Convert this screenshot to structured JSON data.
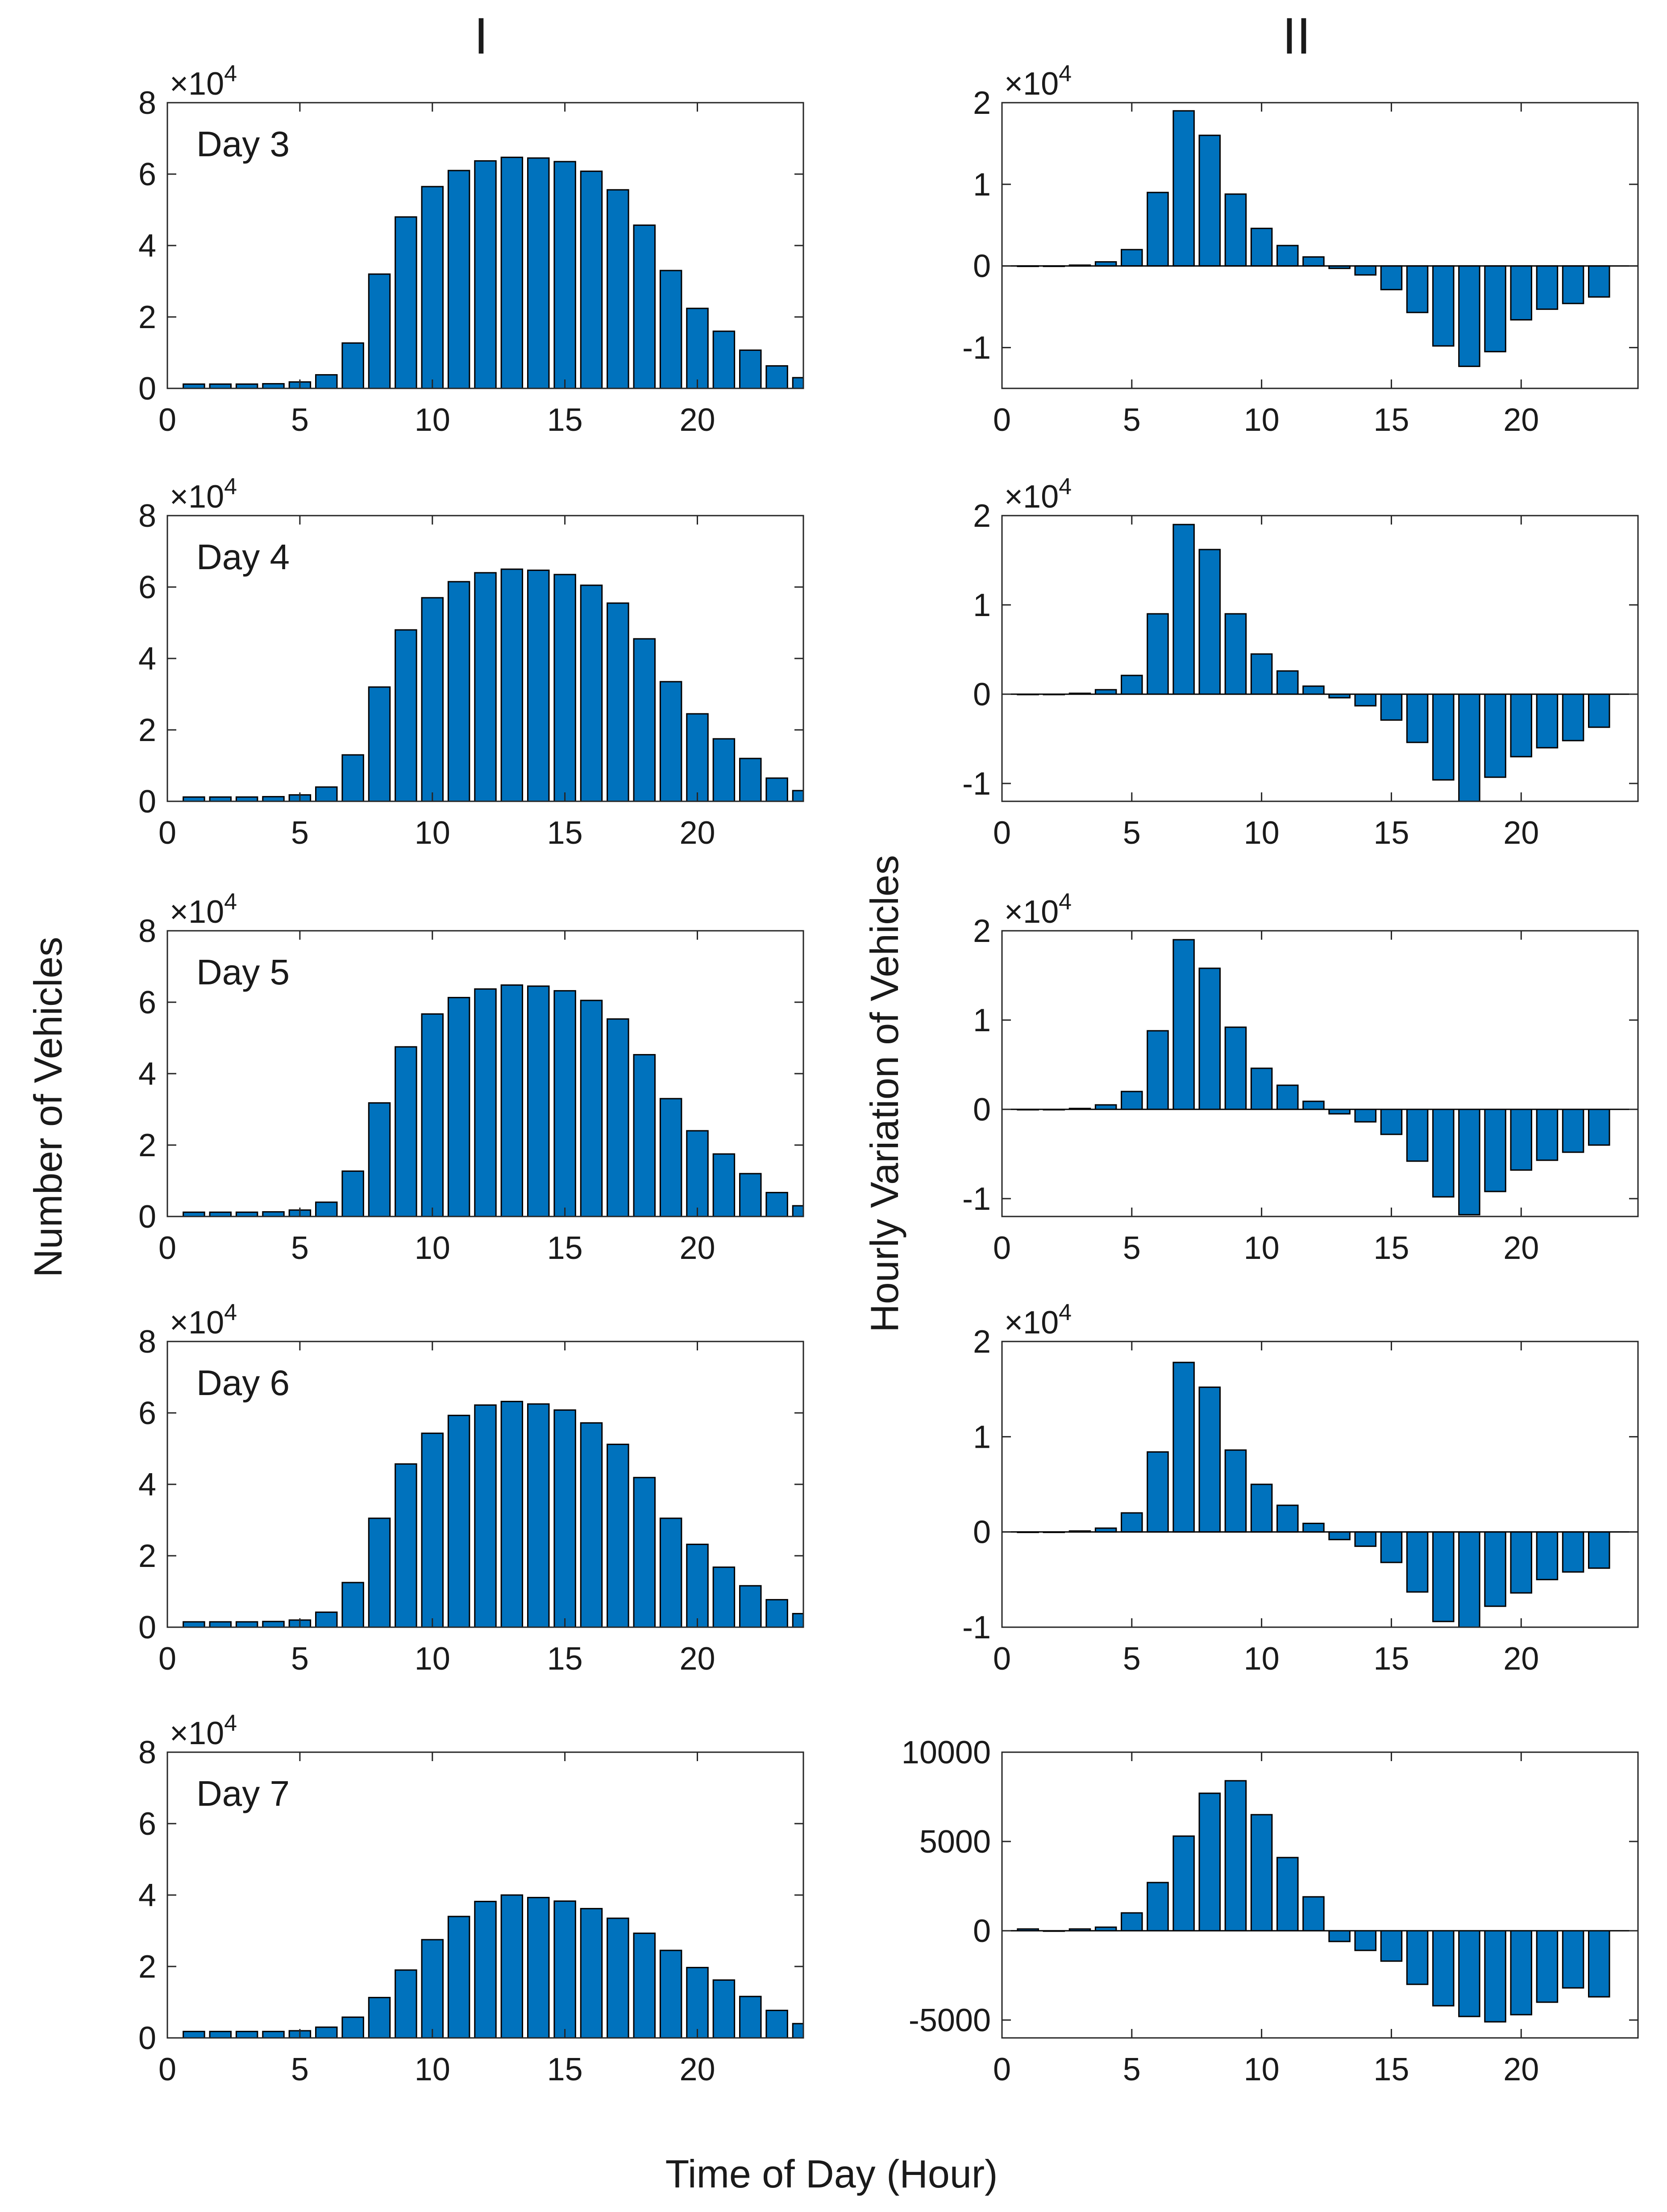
{
  "figure": {
    "column_titles": [
      "I",
      "II"
    ],
    "left_ylabel": "Number of Vehicles",
    "right_ylabel": "Hourly Variation of Vehicles",
    "xlabel": "Time of Day (Hour)",
    "bar_color": "#0072BD",
    "edge_color": "#000000"
  },
  "chart_data": [
    {
      "id": "I-day3",
      "type": "bar",
      "annotation": "Day 3",
      "exponent_label": "×10",
      "exponent": "4",
      "ylim": [
        0,
        80000
      ],
      "yticks": [
        0,
        20000,
        40000,
        60000,
        80000
      ],
      "ytick_labels": [
        "0",
        "2",
        "4",
        "6",
        "8"
      ],
      "xlim": [
        0,
        24
      ],
      "xticks": [
        0,
        5,
        10,
        15,
        20
      ],
      "xtick_labels": [
        "0",
        "5",
        "10",
        "15",
        "20"
      ],
      "x": [
        1,
        2,
        3,
        4,
        5,
        6,
        7,
        8,
        9,
        10,
        11,
        12,
        13,
        14,
        15,
        16,
        17,
        18,
        19,
        20,
        21,
        22,
        23,
        24
      ],
      "values": [
        1200,
        1200,
        1200,
        1300,
        1800,
        3800,
        12700,
        32000,
        48000,
        56500,
        61000,
        63700,
        64700,
        64500,
        63500,
        60800,
        55600,
        45700,
        33000,
        22400,
        16000,
        10700,
        6300,
        3000
      ]
    },
    {
      "id": "II-day3",
      "type": "bar",
      "exponent_label": "×10",
      "exponent": "4",
      "ylim": [
        -15000,
        20000
      ],
      "yticks": [
        -10000,
        0,
        10000,
        20000
      ],
      "ytick_labels": [
        "-1",
        "0",
        "1",
        "2"
      ],
      "xlim": [
        0,
        24.5
      ],
      "xticks": [
        0,
        5,
        10,
        15,
        20
      ],
      "xtick_labels": [
        "0",
        "5",
        "10",
        "15",
        "20"
      ],
      "x": [
        1,
        2,
        3,
        4,
        5,
        6,
        7,
        8,
        9,
        10,
        11,
        12,
        13,
        14,
        15,
        16,
        17,
        18,
        19,
        20,
        21,
        22,
        23
      ],
      "values": [
        0,
        0,
        100,
        500,
        2000,
        9000,
        19000,
        16000,
        8800,
        4600,
        2500,
        1100,
        -300,
        -1100,
        -2900,
        -5700,
        -9800,
        -12300,
        -10500,
        -6600,
        -5300,
        -4600,
        -3800
      ]
    },
    {
      "id": "I-day4",
      "type": "bar",
      "annotation": "Day 4",
      "exponent_label": "×10",
      "exponent": "4",
      "ylim": [
        0,
        80000
      ],
      "yticks": [
        0,
        20000,
        40000,
        60000,
        80000
      ],
      "ytick_labels": [
        "0",
        "2",
        "4",
        "6",
        "8"
      ],
      "xlim": [
        0,
        24
      ],
      "xticks": [
        0,
        5,
        10,
        15,
        20
      ],
      "xtick_labels": [
        "0",
        "5",
        "10",
        "15",
        "20"
      ],
      "x": [
        1,
        2,
        3,
        4,
        5,
        6,
        7,
        8,
        9,
        10,
        11,
        12,
        13,
        14,
        15,
        16,
        17,
        18,
        19,
        20,
        21,
        22,
        23,
        24
      ],
      "values": [
        1200,
        1200,
        1200,
        1300,
        1800,
        4000,
        13000,
        32000,
        48000,
        57000,
        61500,
        64000,
        65000,
        64700,
        63500,
        60500,
        55500,
        45500,
        33500,
        24500,
        17500,
        12000,
        6500,
        3000
      ]
    },
    {
      "id": "II-day4",
      "type": "bar",
      "exponent_label": "×10",
      "exponent": "4",
      "ylim": [
        -12000,
        20000
      ],
      "yticks": [
        -10000,
        0,
        10000,
        20000
      ],
      "ytick_labels": [
        "-1",
        "0",
        "1",
        "2"
      ],
      "xlim": [
        0,
        24.5
      ],
      "xticks": [
        0,
        5,
        10,
        15,
        20
      ],
      "xtick_labels": [
        "0",
        "5",
        "10",
        "15",
        "20"
      ],
      "x": [
        1,
        2,
        3,
        4,
        5,
        6,
        7,
        8,
        9,
        10,
        11,
        12,
        13,
        14,
        15,
        16,
        17,
        18,
        19,
        20,
        21,
        22,
        23
      ],
      "values": [
        0,
        0,
        100,
        500,
        2100,
        9000,
        19000,
        16200,
        9000,
        4500,
        2600,
        900,
        -400,
        -1300,
        -2900,
        -5400,
        -9600,
        -12000,
        -9300,
        -7000,
        -6000,
        -5200,
        -3700
      ]
    },
    {
      "id": "I-day5",
      "type": "bar",
      "annotation": "Day 5",
      "exponent_label": "×10",
      "exponent": "4",
      "ylim": [
        0,
        80000
      ],
      "yticks": [
        0,
        20000,
        40000,
        60000,
        80000
      ],
      "ytick_labels": [
        "0",
        "2",
        "4",
        "6",
        "8"
      ],
      "xlim": [
        0,
        24
      ],
      "xticks": [
        0,
        5,
        10,
        15,
        20
      ],
      "xtick_labels": [
        "0",
        "5",
        "10",
        "15",
        "20"
      ],
      "x": [
        1,
        2,
        3,
        4,
        5,
        6,
        7,
        8,
        9,
        10,
        11,
        12,
        13,
        14,
        15,
        16,
        17,
        18,
        19,
        20,
        21,
        22,
        23,
        24
      ],
      "values": [
        1200,
        1200,
        1200,
        1300,
        1800,
        4000,
        12700,
        31800,
        47500,
        56700,
        61300,
        63700,
        64800,
        64500,
        63200,
        60500,
        55300,
        45300,
        33000,
        24000,
        17500,
        12000,
        6700,
        3000
      ]
    },
    {
      "id": "II-day5",
      "type": "bar",
      "exponent_label": "×10",
      "exponent": "4",
      "ylim": [
        -12000,
        20000
      ],
      "yticks": [
        -10000,
        0,
        10000,
        20000
      ],
      "ytick_labels": [
        "-1",
        "0",
        "1",
        "2"
      ],
      "xlim": [
        0,
        24.5
      ],
      "xticks": [
        0,
        5,
        10,
        15,
        20
      ],
      "xtick_labels": [
        "0",
        "5",
        "10",
        "15",
        "20"
      ],
      "x": [
        1,
        2,
        3,
        4,
        5,
        6,
        7,
        8,
        9,
        10,
        11,
        12,
        13,
        14,
        15,
        16,
        17,
        18,
        19,
        20,
        21,
        22,
        23
      ],
      "values": [
        0,
        0,
        100,
        500,
        2000,
        8800,
        19000,
        15800,
        9200,
        4600,
        2700,
        900,
        -500,
        -1400,
        -2800,
        -5800,
        -9800,
        -11800,
        -9200,
        -6800,
        -5700,
        -4800,
        -4000
      ]
    },
    {
      "id": "I-day6",
      "type": "bar",
      "annotation": "Day 6",
      "exponent_label": "×10",
      "exponent": "4",
      "ylim": [
        0,
        80000
      ],
      "yticks": [
        0,
        20000,
        40000,
        60000,
        80000
      ],
      "ytick_labels": [
        "0",
        "2",
        "4",
        "6",
        "8"
      ],
      "xlim": [
        0,
        24
      ],
      "xticks": [
        0,
        5,
        10,
        15,
        20
      ],
      "xtick_labels": [
        "0",
        "5",
        "10",
        "15",
        "20"
      ],
      "x": [
        1,
        2,
        3,
        4,
        5,
        6,
        7,
        8,
        9,
        10,
        11,
        12,
        13,
        14,
        15,
        16,
        17,
        18,
        19,
        20,
        21,
        22,
        23,
        24
      ],
      "values": [
        1500,
        1500,
        1500,
        1600,
        2000,
        4200,
        12500,
        30500,
        45700,
        54300,
        59300,
        62200,
        63200,
        62500,
        60800,
        57200,
        51200,
        41900,
        30500,
        23200,
        16800,
        11600,
        7700,
        3800
      ]
    },
    {
      "id": "II-day6",
      "type": "bar",
      "exponent_label": "×10",
      "exponent": "4",
      "ylim": [
        -10000,
        20000
      ],
      "yticks": [
        -10000,
        0,
        10000,
        20000
      ],
      "ytick_labels": [
        "-1",
        "0",
        "1",
        "2"
      ],
      "xlim": [
        0,
        24.5
      ],
      "xticks": [
        0,
        5,
        10,
        15,
        20
      ],
      "xtick_labels": [
        "0",
        "5",
        "10",
        "15",
        "20"
      ],
      "x": [
        1,
        2,
        3,
        4,
        5,
        6,
        7,
        8,
        9,
        10,
        11,
        12,
        13,
        14,
        15,
        16,
        17,
        18,
        19,
        20,
        21,
        22,
        23
      ],
      "values": [
        0,
        0,
        100,
        400,
        2000,
        8400,
        17800,
        15200,
        8600,
        5000,
        2800,
        900,
        -800,
        -1500,
        -3200,
        -6300,
        -9400,
        -10000,
        -7800,
        -6400,
        -5000,
        -4200,
        -3800
      ]
    },
    {
      "id": "I-day7",
      "type": "bar",
      "annotation": "Day 7",
      "exponent_label": "×10",
      "exponent": "4",
      "ylim": [
        0,
        80000
      ],
      "yticks": [
        0,
        20000,
        40000,
        60000,
        80000
      ],
      "ytick_labels": [
        "0",
        "2",
        "4",
        "6",
        "8"
      ],
      "xlim": [
        0,
        24
      ],
      "xticks": [
        0,
        5,
        10,
        15,
        20
      ],
      "xtick_labels": [
        "0",
        "5",
        "10",
        "15",
        "20"
      ],
      "x": [
        1,
        2,
        3,
        4,
        5,
        6,
        7,
        8,
        9,
        10,
        11,
        12,
        13,
        14,
        15,
        16,
        17,
        18,
        19,
        20,
        21,
        22,
        23,
        24
      ],
      "values": [
        1800,
        1800,
        1800,
        1800,
        2000,
        3000,
        5800,
        11300,
        19000,
        27500,
        34000,
        38200,
        40000,
        39300,
        38300,
        36200,
        33500,
        29300,
        24500,
        19700,
        16200,
        11600,
        7700,
        4000
      ]
    },
    {
      "id": "II-day7",
      "type": "bar",
      "ylim": [
        -6000,
        10000
      ],
      "yticks": [
        -5000,
        0,
        5000,
        10000
      ],
      "ytick_labels": [
        "-5000",
        "0",
        "5000",
        "10000"
      ],
      "xlim": [
        0,
        24.5
      ],
      "xticks": [
        0,
        5,
        10,
        15,
        20
      ],
      "xtick_labels": [
        "0",
        "5",
        "10",
        "15",
        "20"
      ],
      "x": [
        1,
        2,
        3,
        4,
        5,
        6,
        7,
        8,
        9,
        10,
        11,
        12,
        13,
        14,
        15,
        16,
        17,
        18,
        19,
        20,
        21,
        22,
        23
      ],
      "values": [
        100,
        0,
        100,
        200,
        1000,
        2700,
        5300,
        7700,
        8400,
        6500,
        4100,
        1900,
        -600,
        -1100,
        -1700,
        -3000,
        -4200,
        -4800,
        -5100,
        -4700,
        -4000,
        -3200,
        -3700
      ]
    }
  ]
}
